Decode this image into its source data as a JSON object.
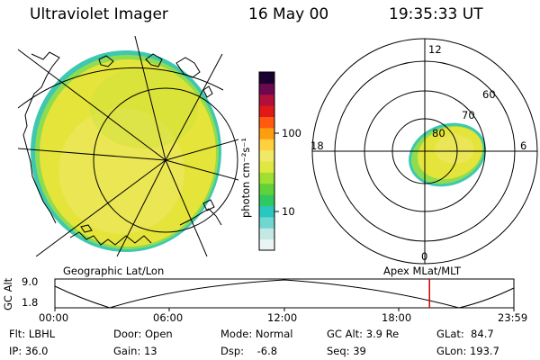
{
  "header": {
    "instrument": "Ultraviolet Imager",
    "date": "16 May 00",
    "time": "19:35:33 UT"
  },
  "colors": {
    "background": "#ffffff",
    "auroral_fill": "#e6e640",
    "image_edge": "#3fc8b0",
    "orbit_marker": "#d00000"
  },
  "colorbar": {
    "unit_label": "photon cm⁻²s⁻¹",
    "ticks": [
      "100",
      "10"
    ],
    "scale": "log",
    "colors": [
      "#eaf4f4",
      "#c5e8e4",
      "#6fd6d0",
      "#28c8c0",
      "#30c860",
      "#5fd23a",
      "#9fe030",
      "#dfe840",
      "#f2e868",
      "#ffd040",
      "#ff9d10",
      "#ff5a10",
      "#e01818",
      "#b0103a",
      "#6a0850",
      "#1a0030"
    ]
  },
  "left_map": {
    "projection_label": "Geographic Lat/Lon"
  },
  "polar_plot": {
    "mlt_labels": {
      "top": "12",
      "right": "6",
      "bottom": "0",
      "left": "18"
    },
    "lat_labels": [
      "60",
      "70",
      "80"
    ],
    "projection_label": "Apex MLat/MLT"
  },
  "orbit_strip": {
    "ylabel": "GC Alt",
    "ytick_top": "9.0",
    "ytick_bottom": "1.8",
    "xticks": [
      "00:00",
      "06:00",
      "12:00",
      "18:00",
      "23:59"
    ],
    "current_time_fraction": 0.816
  },
  "status": {
    "flt": "Flt: LBHL",
    "ip": "IP: 36.0",
    "door": "Door: Open",
    "gain": "Gain: 13",
    "mode": "Mode: Normal",
    "dsp": "Dsp:    -6.8",
    "gc_alt": "GC Alt: 3.9 Re",
    "seq": "Seq: 39",
    "glat": "GLat:  84.7",
    "glon": "GLon: 193.7"
  }
}
